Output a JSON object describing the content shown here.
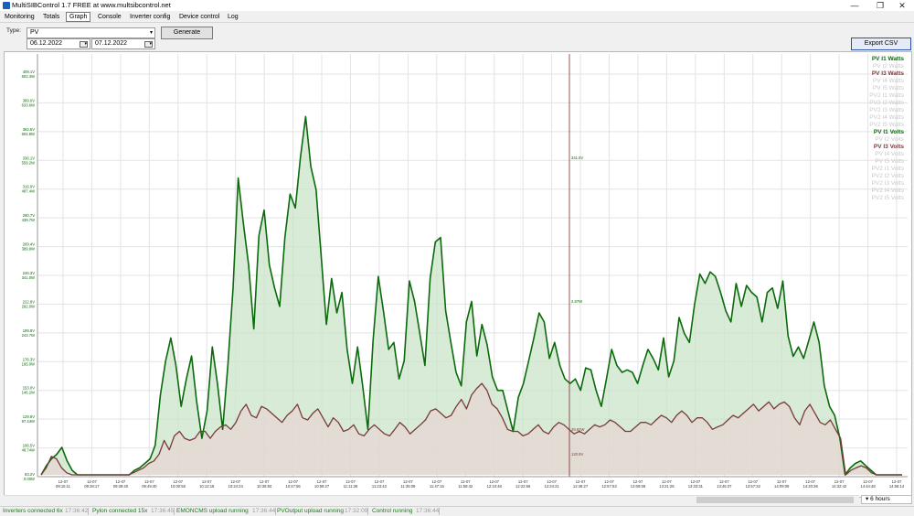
{
  "window": {
    "title": "MultiSIBControl 1.7 FREE at www.multsibcontrol.net",
    "btn_min": "—",
    "btn_max": "❐",
    "btn_close": "✕"
  },
  "menu": [
    "Monitoring",
    "Totals",
    "Graph",
    "Console",
    "Inverter config",
    "Device control",
    "Log"
  ],
  "toolbar": {
    "type_label": "Type:",
    "type_value": "PV",
    "date_from": "06.12.2022",
    "date_to": "07.12.2022",
    "generate_label": "Generate",
    "export_label": "Export CSV"
  },
  "colors": {
    "green": "#0b6a0b",
    "maroon": "#7a3a3a",
    "green_fill": "#c9e4c9",
    "maroon_fill": "#ead2d2",
    "disabled": "#c8c8c8"
  },
  "chart_data": {
    "type": "line",
    "left_axis_volts": [
      "409.1V",
      "389.0V",
      "362.5V",
      "336.1V",
      "316.0V",
      "290.7V",
      "269.4V",
      "246.3V",
      "222.8V",
      "199.8V",
      "176.3V",
      "153.0V",
      "129.8V",
      "106.5V",
      "83.2V"
    ],
    "left_axis_watts": [
      "602.4W",
      "633.6W",
      "604.8W",
      "559.2W",
      "487.4W",
      "439.7W",
      "389.9W",
      "341.0W",
      "292.0W",
      "243.7W",
      "195.0W",
      "146.2W",
      "97.44W",
      "48.74W",
      "0.00W"
    ],
    "x_ticks": [
      "12-07\n09:15:11",
      "12-07\n09:28:17",
      "12-07\n09:39:40",
      "12-07\n09:49:40",
      "12-07\n10:00:55",
      "12-07\n10:12:18",
      "12-07\n10:24:24",
      "12-07\n10:35:50",
      "12-07\n10:47:56",
      "12-07\n10:59:27",
      "12-07\n11:11:38",
      "12-07\n11:23:42",
      "12-07\n11:35:09",
      "12-07\n11:47:15",
      "12-07\n11:58:42",
      "12-07\n12:10:48",
      "12-07\n12:22:56",
      "12-07\n12:34:21",
      "12-07\n12:46:27",
      "12-07\n12:57:53",
      "12-07\n13:09:59",
      "12-07\n13:21:26",
      "12-07\n13:33:31",
      "12-07\n13:45:37",
      "12-07\n13:57:32",
      "12-07\n14:09:09",
      "12-07\n14:20:36",
      "12-07\n14:32:42",
      "12-07\n14:44:48",
      "12-07\n14:56:14"
    ],
    "cursor_labels": {
      "pv_i1_volts": "341.5V",
      "pv_i1_watts": "2.87W",
      "pv_i3_watts": "39.92W",
      "pv_i3_volts": "120.9V"
    },
    "legend": [
      {
        "name": "PV I1 Watts",
        "active": true
      },
      {
        "name": "PV I2 Watts",
        "active": false
      },
      {
        "name": "PV I3 Watts",
        "active": true
      },
      {
        "name": "PV I4 Watts",
        "active": false
      },
      {
        "name": "PV I5 Watts",
        "active": false
      },
      {
        "name": "PV2 I1 Watts",
        "active": false
      },
      {
        "name": "PV2 I2 Watts",
        "active": false
      },
      {
        "name": "PV2 I3 Watts",
        "active": false
      },
      {
        "name": "PV2 I4 Watts",
        "active": false
      },
      {
        "name": "PV2 I5 Watts",
        "active": false
      },
      {
        "name": "PV I1 Volts",
        "active": true
      },
      {
        "name": "PV I2 Volts",
        "active": false
      },
      {
        "name": "PV I3 Volts",
        "active": true
      },
      {
        "name": "PV I4 Volts",
        "active": false
      },
      {
        "name": "PV I5 Volts",
        "active": false
      },
      {
        "name": "PV2 I1 Volts",
        "active": false
      },
      {
        "name": "PV2 I2 Volts",
        "active": false
      },
      {
        "name": "PV2 I3 Volts",
        "active": false
      },
      {
        "name": "PV2 I4 Volts",
        "active": false
      },
      {
        "name": "PV2 I5 Volts",
        "active": false
      }
    ],
    "series": [
      {
        "name": "PV I1 Watts",
        "color": "#0b6a0b",
        "fill": true,
        "values": [
          0.0,
          2.2,
          3.9,
          5.0,
          6.7,
          3.4,
          1.1,
          0.0,
          0.0,
          0.0,
          0.0,
          0.0,
          0.0,
          0.0,
          0.0,
          0.0,
          0.0,
          0.0,
          1.1,
          1.7,
          2.8,
          3.9,
          7.2,
          19.5,
          27.8,
          33.4,
          26.7,
          16.7,
          23.4,
          29.0,
          17.8,
          8.9,
          15.6,
          31.2,
          22.3,
          11.1,
          26.7,
          45.6,
          72.4,
          61.3,
          51.2,
          35.6,
          58.4,
          64.6,
          51.2,
          45.6,
          41.1,
          57.9,
          68.5,
          65.1,
          77.4,
          87.4,
          75.2,
          69.6,
          53.4,
          36.7,
          47.9,
          39.5,
          44.5,
          30.6,
          22.3,
          31.2,
          21.7,
          11.1,
          32.8,
          48.4,
          40.0,
          30.6,
          32.3,
          23.4,
          27.8,
          47.3,
          42.3,
          34.5,
          26.7,
          47.9,
          56.8,
          57.9,
          40.0,
          32.3,
          25.0,
          21.7,
          37.3,
          42.3,
          29.0,
          36.7,
          31.7,
          23.9,
          20.6,
          20.6,
          15.6,
          10.6,
          18.9,
          22.3,
          27.8,
          33.4,
          39.5,
          37.3,
          28.4,
          32.3,
          26.7,
          23.4,
          22.3,
          23.4,
          20.6,
          26.1,
          25.6,
          20.6,
          16.7,
          23.4,
          30.6,
          26.7,
          25.0,
          25.6,
          25.0,
          22.3,
          26.7,
          30.6,
          28.4,
          25.6,
          33.4,
          23.9,
          27.8,
          38.4,
          34.5,
          32.3,
          41.7,
          49.0,
          46.7,
          49.5,
          48.4,
          44.5,
          40.0,
          37.3,
          46.7,
          41.1,
          46.2,
          44.5,
          43.4,
          37.3,
          44.5,
          45.6,
          40.6,
          47.3,
          33.9,
          28.9,
          31.2,
          28.4,
          32.8,
          37.3,
          32.3,
          21.7,
          16.7,
          14.5,
          8.9,
          0.0,
          1.7,
          2.8,
          3.4,
          2.2,
          1.1,
          0.0,
          0.0,
          0.0,
          0.0,
          0.0,
          0.0
        ]
      },
      {
        "name": "PV I3 Watts",
        "color": "#7a3a3a",
        "fill": true,
        "values": [
          0.0,
          1.7,
          4.5,
          3.9,
          1.7,
          0.5,
          0.0,
          0.0,
          0.0,
          0.0,
          0.0,
          0.0,
          0.0,
          0.0,
          0.0,
          0.0,
          0.0,
          0.0,
          0.5,
          1.1,
          1.7,
          2.8,
          3.4,
          5.0,
          8.4,
          6.1,
          9.5,
          10.6,
          8.9,
          8.4,
          8.9,
          10.6,
          10.6,
          8.9,
          10.6,
          11.7,
          12.2,
          11.1,
          12.8,
          15.6,
          17.2,
          14.5,
          13.9,
          16.7,
          16.1,
          15.0,
          13.9,
          12.8,
          14.5,
          15.6,
          17.2,
          13.9,
          13.4,
          15.0,
          16.1,
          13.9,
          11.7,
          13.9,
          12.8,
          10.6,
          11.1,
          12.2,
          10.0,
          9.5,
          11.1,
          12.2,
          11.1,
          10.0,
          9.5,
          11.1,
          12.8,
          11.7,
          10.0,
          11.1,
          12.2,
          13.4,
          15.6,
          16.1,
          15.0,
          13.9,
          14.5,
          16.7,
          18.4,
          16.1,
          19.5,
          21.1,
          22.3,
          20.6,
          17.2,
          16.1,
          13.9,
          11.1,
          10.6,
          10.6,
          9.5,
          10.0,
          11.1,
          12.2,
          10.6,
          10.0,
          11.7,
          12.8,
          12.2,
          11.1,
          10.0,
          10.6,
          10.0,
          11.1,
          12.2,
          11.7,
          12.2,
          13.4,
          12.8,
          11.7,
          10.6,
          10.6,
          11.7,
          12.8,
          12.8,
          12.2,
          13.4,
          14.5,
          13.9,
          12.8,
          14.5,
          15.6,
          14.5,
          12.8,
          13.9,
          13.9,
          12.8,
          11.1,
          11.7,
          12.2,
          13.4,
          14.5,
          13.9,
          15.0,
          16.1,
          17.2,
          15.6,
          16.7,
          17.8,
          16.1,
          17.2,
          17.8,
          16.7,
          13.9,
          12.2,
          15.6,
          17.2,
          15.0,
          12.8,
          12.2,
          13.4,
          11.1,
          8.9,
          0.0,
          1.1,
          1.7,
          2.2,
          1.7,
          0.5,
          0.0,
          0.0,
          0.0,
          0.0,
          0.0,
          0.0
        ]
      },
      {
        "name": "PV I1 Volts",
        "color": "#0b6a0b",
        "fill": false,
        "values": []
      },
      {
        "name": "PV I3 Volts",
        "color": "#7a3a3a",
        "fill": false,
        "values": []
      }
    ]
  },
  "bottom": {
    "range_value": "6 hours"
  },
  "status": [
    {
      "text": "Inverters connected 6x",
      "time": "17:36:42"
    },
    {
      "text": "Pylon connected 15x",
      "time": "17:36:45"
    },
    {
      "text": "EMONCMS upload running",
      "time": "17:36:44"
    },
    {
      "text": "PVOutput upload running",
      "time": "17:32:09"
    },
    {
      "text": "Control running",
      "time": "17:36:44"
    }
  ]
}
